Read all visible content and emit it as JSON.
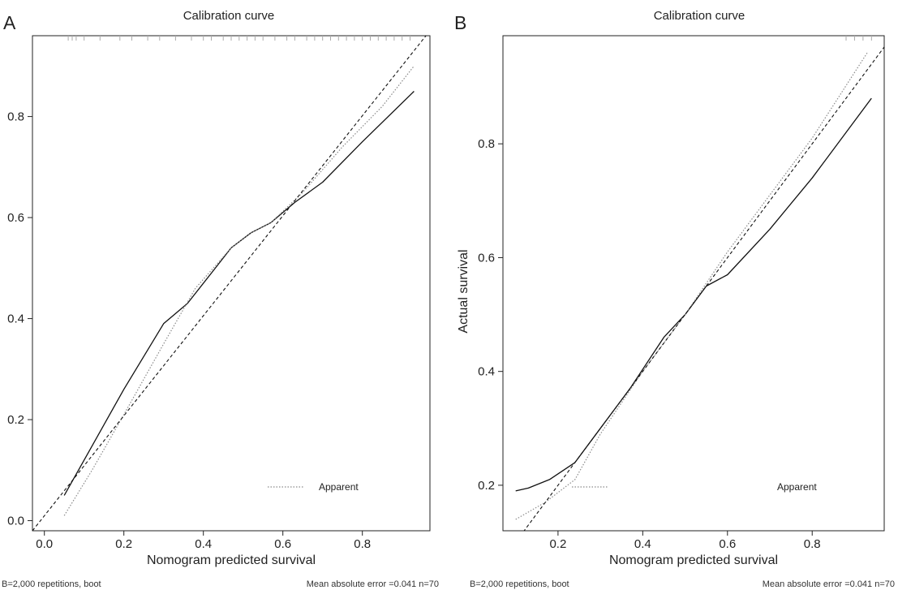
{
  "chart_data": [
    {
      "panel": "A",
      "type": "line",
      "title": "Calibration curve",
      "xlabel": "Nomogram predicted survival",
      "ylabel": "",
      "xlim": [
        -0.03,
        0.97
      ],
      "ylim": [
        -0.02,
        0.96
      ],
      "xticks": [
        0.0,
        0.2,
        0.4,
        0.6,
        0.8
      ],
      "xtick_labels": [
        "0.0",
        "0.2",
        "0.4",
        "0.6",
        "0.8"
      ],
      "yticks": [
        0.0,
        0.2,
        0.4,
        0.6,
        0.8
      ],
      "ytick_labels": [
        "0.0",
        "0.2",
        "0.4",
        "0.6",
        "0.8"
      ],
      "grid": false,
      "legend": "bottom-right",
      "legend_label": "Apparent",
      "footer_left": "B=2,000 repetitions, boot",
      "footer_right": "Mean absolute error =0.041 n=70",
      "series": [
        {
          "style": "solid",
          "points": [
            [
              0.05,
              0.05
            ],
            [
              0.1,
              0.12
            ],
            [
              0.2,
              0.26
            ],
            [
              0.3,
              0.39
            ],
            [
              0.36,
              0.43
            ],
            [
              0.42,
              0.49
            ],
            [
              0.47,
              0.54
            ],
            [
              0.52,
              0.57
            ],
            [
              0.57,
              0.59
            ],
            [
              0.63,
              0.63
            ],
            [
              0.7,
              0.67
            ],
            [
              0.8,
              0.75
            ],
            [
              0.93,
              0.85
            ]
          ]
        },
        {
          "name": "Apparent",
          "style": "dotted",
          "points": [
            [
              0.05,
              0.01
            ],
            [
              0.12,
              0.1
            ],
            [
              0.2,
              0.21
            ],
            [
              0.3,
              0.35
            ],
            [
              0.38,
              0.46
            ],
            [
              0.47,
              0.54
            ],
            [
              0.52,
              0.57
            ],
            [
              0.57,
              0.59
            ],
            [
              0.65,
              0.65
            ],
            [
              0.75,
              0.74
            ],
            [
              0.85,
              0.82
            ],
            [
              0.93,
              0.9
            ]
          ]
        },
        {
          "style": "dashed",
          "points": [
            [
              -0.03,
              -0.02
            ],
            [
              0.96,
              0.96
            ]
          ]
        }
      ],
      "rug": [
        0.06,
        0.07,
        0.08,
        0.1,
        0.14,
        0.19,
        0.22,
        0.26,
        0.29,
        0.33,
        0.37,
        0.4,
        0.42,
        0.45,
        0.47,
        0.49,
        0.51,
        0.53,
        0.55,
        0.58,
        0.61,
        0.63,
        0.66,
        0.68,
        0.7,
        0.72,
        0.74,
        0.76,
        0.78,
        0.8,
        0.82,
        0.84,
        0.86,
        0.88,
        0.9,
        0.92
      ]
    },
    {
      "panel": "B",
      "type": "line",
      "title": "Calibration curve",
      "xlabel": "Nomogram predicted survival",
      "ylabel": "Actual survival",
      "xlim": [
        0.07,
        0.97
      ],
      "ylim": [
        0.12,
        0.99
      ],
      "xticks": [
        0.2,
        0.4,
        0.6,
        0.8
      ],
      "xtick_labels": [
        "0.2",
        "0.4",
        "0.6",
        "0.8"
      ],
      "yticks": [
        0.2,
        0.4,
        0.6,
        0.8
      ],
      "ytick_labels": [
        "0.2",
        "0.4",
        "0.6",
        "0.8"
      ],
      "grid": false,
      "legend": "bottom-right",
      "legend_label": "Apparent",
      "footer_left": "B=2,000 repetitions, boot",
      "footer_right": "Mean absolute error =0.041 n=70",
      "series": [
        {
          "style": "solid",
          "points": [
            [
              0.1,
              0.19
            ],
            [
              0.13,
              0.195
            ],
            [
              0.18,
              0.21
            ],
            [
              0.24,
              0.24
            ],
            [
              0.3,
              0.3
            ],
            [
              0.37,
              0.37
            ],
            [
              0.45,
              0.46
            ],
            [
              0.5,
              0.5
            ],
            [
              0.55,
              0.55
            ],
            [
              0.6,
              0.57
            ],
            [
              0.7,
              0.65
            ],
            [
              0.8,
              0.74
            ],
            [
              0.94,
              0.88
            ]
          ]
        },
        {
          "name": "Apparent",
          "style": "dotted",
          "points": [
            [
              0.1,
              0.14
            ],
            [
              0.17,
              0.17
            ],
            [
              0.24,
              0.21
            ],
            [
              0.3,
              0.29
            ],
            [
              0.4,
              0.4
            ],
            [
              0.5,
              0.5
            ],
            [
              0.6,
              0.61
            ],
            [
              0.7,
              0.71
            ],
            [
              0.8,
              0.81
            ],
            [
              0.93,
              0.96
            ]
          ]
        },
        {
          "style": "dashed",
          "points": [
            [
              0.07,
              0.07
            ],
            [
              0.99,
              0.99
            ]
          ]
        }
      ],
      "rug": [
        0.88,
        0.9,
        0.92,
        0.94
      ]
    }
  ]
}
